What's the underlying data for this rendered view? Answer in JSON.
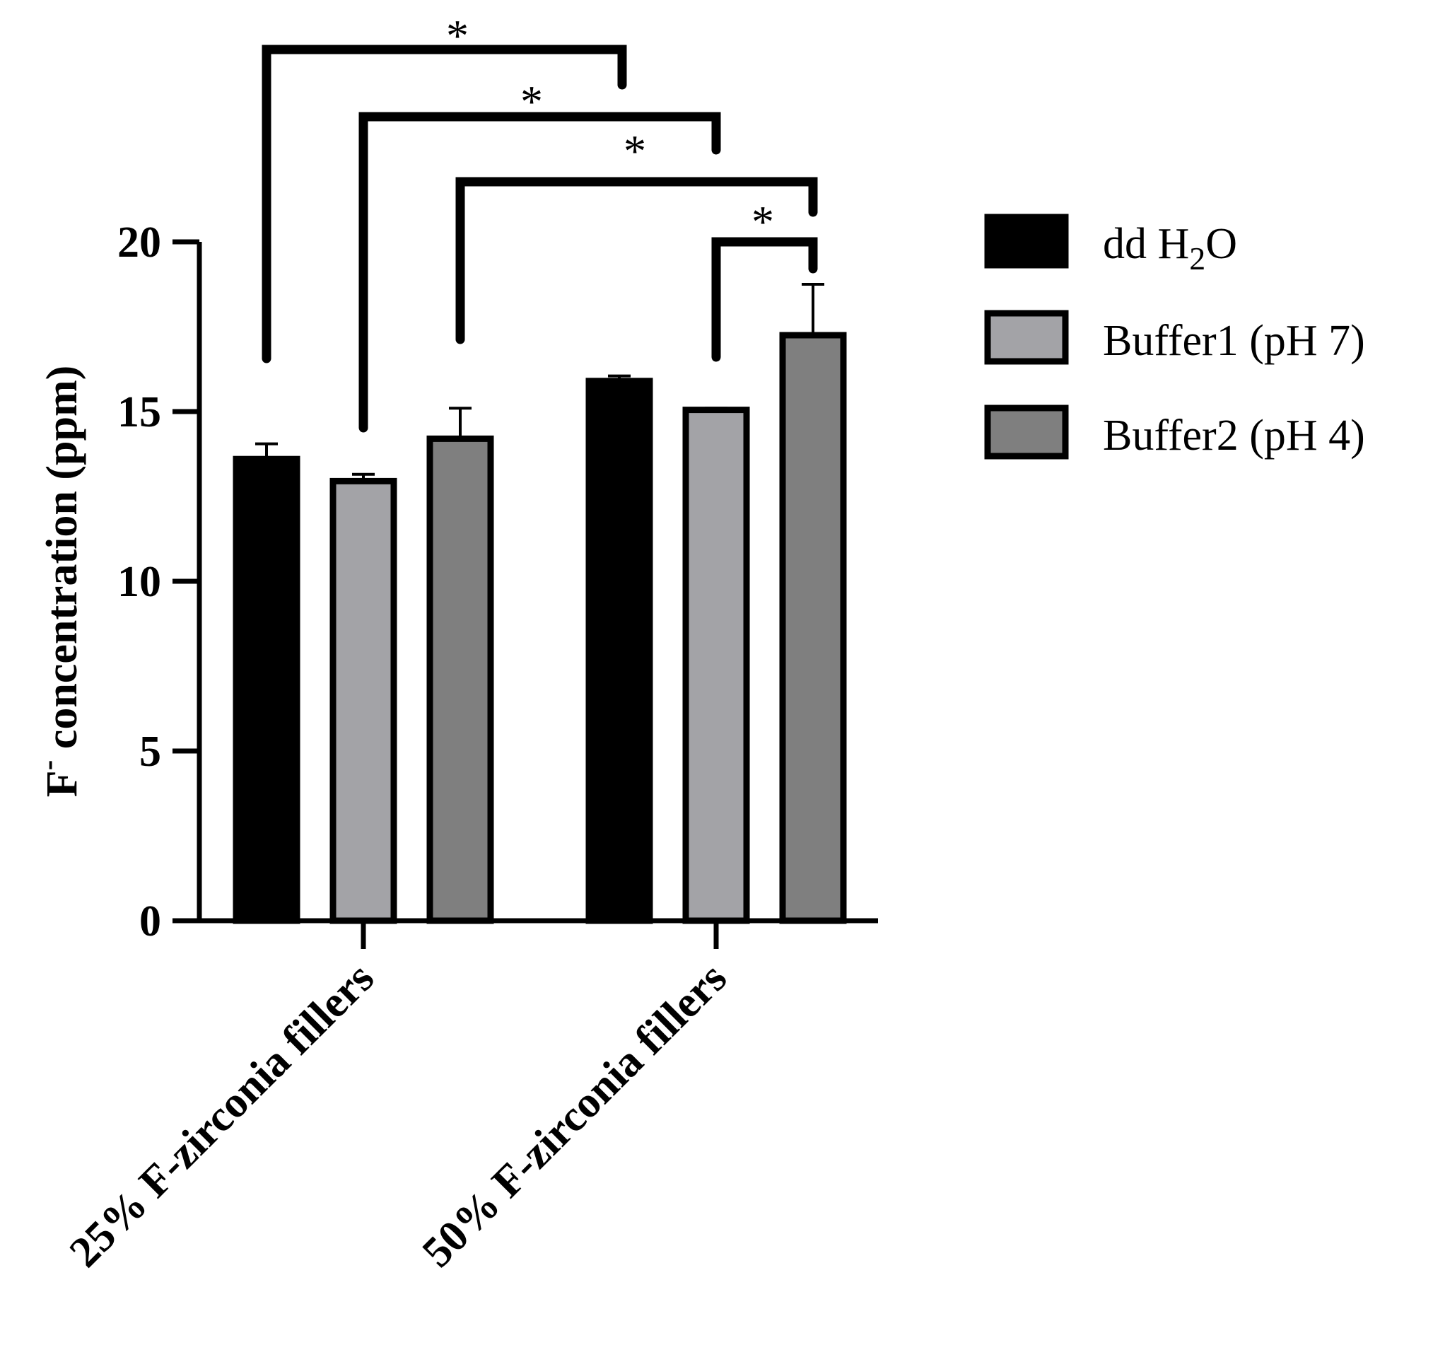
{
  "chart_data": {
    "type": "bar",
    "title": "",
    "ylabel": {
      "main": "F",
      "superscript": "-",
      "rest": " concentration (ppm)"
    },
    "xlabel": "",
    "ylim": [
      0,
      20
    ],
    "yticks": [
      0,
      5,
      10,
      15,
      20
    ],
    "categories": [
      "25% F-zirconia fillers",
      "50% F-zirconia fillers"
    ],
    "series": [
      {
        "name": "dd H2O",
        "name_parts": {
          "pre": "dd H",
          "sub": "2",
          "post": "O"
        },
        "color": "#000000",
        "values": [
          13.6,
          15.9
        ],
        "errors": [
          0.45,
          0.15
        ]
      },
      {
        "name": "Buffer1 (pH 7)",
        "color": "#a3a3a7",
        "values": [
          12.95,
          15.05
        ],
        "errors": [
          0.2,
          0.05
        ]
      },
      {
        "name": "Buffer2 (pH 4)",
        "color": "#7f7f7f",
        "values": [
          14.2,
          17.25
        ],
        "errors": [
          0.9,
          1.5
        ]
      }
    ],
    "significance": [
      {
        "from": [
          0,
          0
        ],
        "to": [
          1,
          1
        ],
        "label": "*"
      },
      {
        "from": [
          0,
          1
        ],
        "to": [
          1,
          1
        ],
        "label": "*"
      },
      {
        "from": [
          0,
          2
        ],
        "to": [
          1,
          2
        ],
        "label": "*"
      },
      {
        "from": [
          1,
          1
        ],
        "to": [
          1,
          2
        ],
        "label": "*"
      }
    ],
    "legend_position": "right",
    "grid": false
  }
}
